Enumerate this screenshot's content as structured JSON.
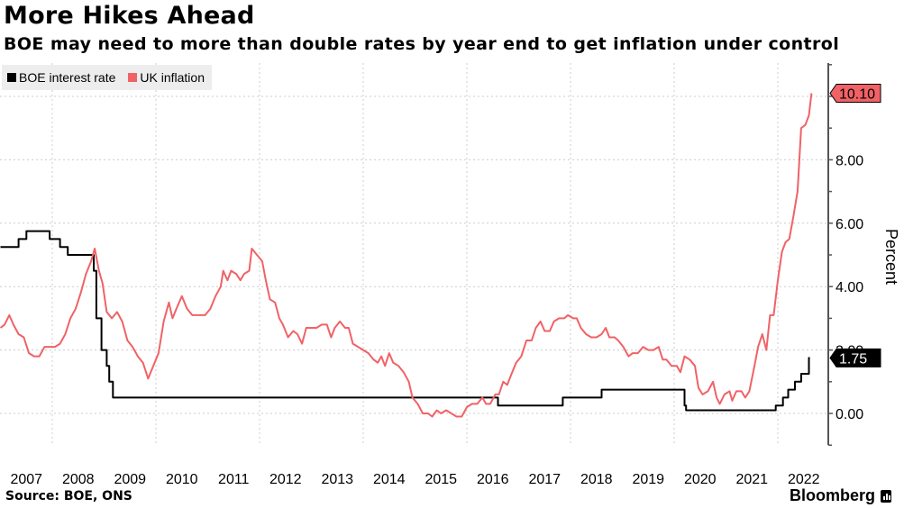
{
  "header": {
    "title": "More Hikes Ahead",
    "subtitle": "BOE may need to more than double rates by year end to get inflation under control"
  },
  "footer": {
    "source": "Source: BOE, ONS",
    "brand": "Bloomberg"
  },
  "colors": {
    "boe": "#000000",
    "inflation": "#f06266",
    "label_inflation_bg": "#f06266",
    "label_boe_bg": "#000000",
    "grid": "#cccccc",
    "axis": "#555555"
  },
  "chart_data": {
    "type": "line",
    "title": "More Hikes Ahead",
    "subtitle": "BOE may need to more than double rates by year end to get inflation under control",
    "xlabel": "",
    "ylabel": "Percent",
    "ylim": [
      -1,
      11
    ],
    "xlim": [
      2007.0,
      2022.75
    ],
    "y_ticks": [
      "0.00",
      "2.00",
      "4.00",
      "6.00",
      "8.00"
    ],
    "y_tick_values": [
      0,
      2,
      4,
      6,
      8
    ],
    "x_tick_labels": [
      "2007",
      "2008",
      "2009",
      "2010",
      "2011",
      "2012",
      "2013",
      "2014",
      "2015",
      "2016",
      "2017",
      "2018",
      "2019",
      "2020",
      "2021",
      "2022"
    ],
    "grid": true,
    "legend_position": "top-left",
    "last_value_labels": [
      {
        "series": "UK inflation",
        "value": "10.10"
      },
      {
        "series": "BOE interest rate",
        "value": "1.75"
      }
    ],
    "series": [
      {
        "name": "BOE interest rate",
        "step": true,
        "points": [
          [
            2007.0,
            5.25
          ],
          [
            2007.1,
            5.25
          ],
          [
            2007.35,
            5.5
          ],
          [
            2007.5,
            5.75
          ],
          [
            2007.95,
            5.5
          ],
          [
            2008.15,
            5.25
          ],
          [
            2008.3,
            5.0
          ],
          [
            2008.8,
            4.5
          ],
          [
            2008.85,
            3.0
          ],
          [
            2008.95,
            2.0
          ],
          [
            2009.05,
            1.5
          ],
          [
            2009.1,
            1.0
          ],
          [
            2009.17,
            0.5
          ],
          [
            2016.6,
            0.25
          ],
          [
            2017.85,
            0.5
          ],
          [
            2018.6,
            0.75
          ],
          [
            2020.2,
            0.25
          ],
          [
            2020.23,
            0.1
          ],
          [
            2021.96,
            0.25
          ],
          [
            2022.1,
            0.5
          ],
          [
            2022.2,
            0.75
          ],
          [
            2022.33,
            1.0
          ],
          [
            2022.45,
            1.25
          ],
          [
            2022.6,
            1.75
          ],
          [
            2022.62,
            1.75
          ]
        ]
      },
      {
        "name": "UK inflation",
        "step": false,
        "points": [
          [
            2007.0,
            2.7
          ],
          [
            2007.08,
            2.8
          ],
          [
            2007.17,
            3.1
          ],
          [
            2007.25,
            2.8
          ],
          [
            2007.35,
            2.5
          ],
          [
            2007.45,
            2.4
          ],
          [
            2007.55,
            1.9
          ],
          [
            2007.65,
            1.8
          ],
          [
            2007.75,
            1.8
          ],
          [
            2007.85,
            2.1
          ],
          [
            2007.95,
            2.1
          ],
          [
            2008.05,
            2.1
          ],
          [
            2008.15,
            2.2
          ],
          [
            2008.25,
            2.5
          ],
          [
            2008.35,
            3.0
          ],
          [
            2008.45,
            3.3
          ],
          [
            2008.55,
            3.8
          ],
          [
            2008.65,
            4.4
          ],
          [
            2008.75,
            4.8
          ],
          [
            2008.82,
            5.2
          ],
          [
            2008.9,
            4.5
          ],
          [
            2008.97,
            4.1
          ],
          [
            2009.05,
            3.2
          ],
          [
            2009.15,
            3.0
          ],
          [
            2009.25,
            3.2
          ],
          [
            2009.35,
            2.9
          ],
          [
            2009.45,
            2.3
          ],
          [
            2009.55,
            2.1
          ],
          [
            2009.65,
            1.8
          ],
          [
            2009.75,
            1.6
          ],
          [
            2009.85,
            1.1
          ],
          [
            2009.95,
            1.5
          ],
          [
            2010.05,
            1.9
          ],
          [
            2010.15,
            2.9
          ],
          [
            2010.25,
            3.5
          ],
          [
            2010.32,
            3.0
          ],
          [
            2010.42,
            3.4
          ],
          [
            2010.5,
            3.7
          ],
          [
            2010.6,
            3.3
          ],
          [
            2010.7,
            3.1
          ],
          [
            2010.8,
            3.1
          ],
          [
            2010.95,
            3.1
          ],
          [
            2011.05,
            3.3
          ],
          [
            2011.15,
            3.7
          ],
          [
            2011.25,
            4.0
          ],
          [
            2011.3,
            4.5
          ],
          [
            2011.38,
            4.2
          ],
          [
            2011.45,
            4.5
          ],
          [
            2011.55,
            4.4
          ],
          [
            2011.63,
            4.2
          ],
          [
            2011.7,
            4.4
          ],
          [
            2011.8,
            4.5
          ],
          [
            2011.85,
            5.2
          ],
          [
            2011.95,
            5.0
          ],
          [
            2012.05,
            4.8
          ],
          [
            2012.12,
            4.2
          ],
          [
            2012.2,
            3.6
          ],
          [
            2012.3,
            3.5
          ],
          [
            2012.38,
            3.0
          ],
          [
            2012.45,
            2.8
          ],
          [
            2012.55,
            2.4
          ],
          [
            2012.65,
            2.6
          ],
          [
            2012.73,
            2.5
          ],
          [
            2012.82,
            2.2
          ],
          [
            2012.9,
            2.7
          ],
          [
            2013.1,
            2.7
          ],
          [
            2013.2,
            2.8
          ],
          [
            2013.3,
            2.8
          ],
          [
            2013.38,
            2.4
          ],
          [
            2013.45,
            2.7
          ],
          [
            2013.55,
            2.9
          ],
          [
            2013.65,
            2.7
          ],
          [
            2013.72,
            2.7
          ],
          [
            2013.8,
            2.2
          ],
          [
            2013.9,
            2.1
          ],
          [
            2014.0,
            2.0
          ],
          [
            2014.1,
            1.9
          ],
          [
            2014.2,
            1.7
          ],
          [
            2014.28,
            1.6
          ],
          [
            2014.35,
            1.8
          ],
          [
            2014.42,
            1.5
          ],
          [
            2014.5,
            1.9
          ],
          [
            2014.58,
            1.6
          ],
          [
            2014.68,
            1.5
          ],
          [
            2014.78,
            1.3
          ],
          [
            2014.88,
            1.0
          ],
          [
            2014.95,
            0.5
          ],
          [
            2015.05,
            0.3
          ],
          [
            2015.15,
            0.0
          ],
          [
            2015.25,
            0.0
          ],
          [
            2015.33,
            -0.1
          ],
          [
            2015.42,
            0.1
          ],
          [
            2015.5,
            0.0
          ],
          [
            2015.6,
            0.1
          ],
          [
            2015.7,
            0.0
          ],
          [
            2015.8,
            -0.1
          ],
          [
            2015.9,
            -0.1
          ],
          [
            2016.0,
            0.2
          ],
          [
            2016.1,
            0.3
          ],
          [
            2016.2,
            0.3
          ],
          [
            2016.3,
            0.5
          ],
          [
            2016.37,
            0.3
          ],
          [
            2016.45,
            0.3
          ],
          [
            2016.55,
            0.6
          ],
          [
            2016.62,
            0.6
          ],
          [
            2016.7,
            1.0
          ],
          [
            2016.78,
            0.9
          ],
          [
            2016.85,
            1.2
          ],
          [
            2016.95,
            1.6
          ],
          [
            2017.05,
            1.8
          ],
          [
            2017.15,
            2.3
          ],
          [
            2017.25,
            2.3
          ],
          [
            2017.33,
            2.7
          ],
          [
            2017.42,
            2.9
          ],
          [
            2017.5,
            2.6
          ],
          [
            2017.6,
            2.6
          ],
          [
            2017.68,
            2.9
          ],
          [
            2017.78,
            3.0
          ],
          [
            2017.88,
            3.0
          ],
          [
            2017.95,
            3.1
          ],
          [
            2018.05,
            3.0
          ],
          [
            2018.12,
            3.0
          ],
          [
            2018.2,
            2.7
          ],
          [
            2018.3,
            2.5
          ],
          [
            2018.4,
            2.4
          ],
          [
            2018.5,
            2.4
          ],
          [
            2018.6,
            2.5
          ],
          [
            2018.68,
            2.7
          ],
          [
            2018.75,
            2.4
          ],
          [
            2018.85,
            2.4
          ],
          [
            2018.92,
            2.3
          ],
          [
            2019.02,
            2.1
          ],
          [
            2019.12,
            1.8
          ],
          [
            2019.2,
            1.9
          ],
          [
            2019.3,
            1.9
          ],
          [
            2019.4,
            2.1
          ],
          [
            2019.5,
            2.0
          ],
          [
            2019.6,
            2.0
          ],
          [
            2019.7,
            2.1
          ],
          [
            2019.78,
            1.7
          ],
          [
            2019.85,
            1.7
          ],
          [
            2019.95,
            1.5
          ],
          [
            2020.05,
            1.5
          ],
          [
            2020.12,
            1.3
          ],
          [
            2020.2,
            1.8
          ],
          [
            2020.3,
            1.7
          ],
          [
            2020.4,
            1.5
          ],
          [
            2020.47,
            0.8
          ],
          [
            2020.55,
            0.6
          ],
          [
            2020.65,
            0.7
          ],
          [
            2020.75,
            1.0
          ],
          [
            2020.82,
            0.5
          ],
          [
            2020.88,
            0.3
          ],
          [
            2020.97,
            0.6
          ],
          [
            2021.07,
            0.7
          ],
          [
            2021.12,
            0.4
          ],
          [
            2021.2,
            0.7
          ],
          [
            2021.3,
            0.7
          ],
          [
            2021.37,
            0.5
          ],
          [
            2021.45,
            0.7
          ],
          [
            2021.55,
            1.5
          ],
          [
            2021.62,
            2.1
          ],
          [
            2021.7,
            2.5
          ],
          [
            2021.78,
            2.0
          ],
          [
            2021.85,
            3.1
          ],
          [
            2021.92,
            3.1
          ],
          [
            2022.0,
            4.2
          ],
          [
            2022.08,
            5.1
          ],
          [
            2022.15,
            5.4
          ],
          [
            2022.22,
            5.5
          ],
          [
            2022.3,
            6.2
          ],
          [
            2022.38,
            7.0
          ],
          [
            2022.45,
            9.0
          ],
          [
            2022.53,
            9.1
          ],
          [
            2022.6,
            9.4
          ],
          [
            2022.65,
            10.1
          ]
        ]
      }
    ]
  }
}
